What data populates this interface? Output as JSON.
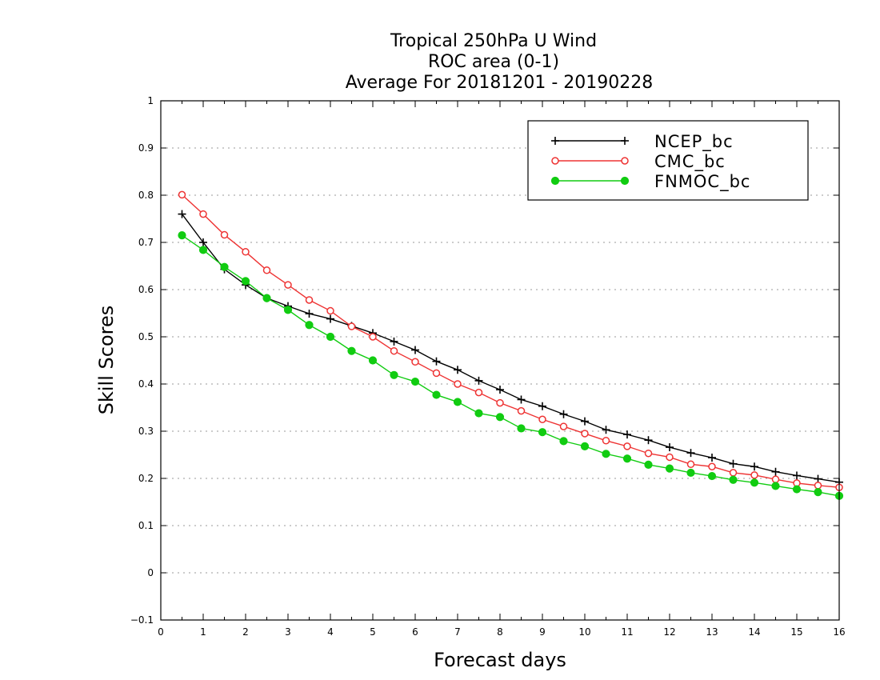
{
  "chart_data": {
    "type": "line",
    "title_lines": [
      "Tropical 250hPa U Wind",
      "ROC area (0-1)",
      "Average For 20181201 - 20190228"
    ],
    "xlabel": "Forecast days",
    "ylabel": "Skill Scores",
    "xlim": [
      0,
      16
    ],
    "ylim": [
      -0.1,
      1
    ],
    "x_ticks": [
      "0",
      "1",
      "2",
      "3",
      "4",
      "5",
      "6",
      "7",
      "8",
      "9",
      "10",
      "11",
      "12",
      "13",
      "14",
      "15",
      "16"
    ],
    "y_ticks": [
      "−0.1",
      "0",
      "0.1",
      "0.2",
      "0.3",
      "0.4",
      "0.5",
      "0.6",
      "0.7",
      "0.8",
      "0.9",
      "1"
    ],
    "grid": "horizontal dotted",
    "legend_position": "top-right",
    "x": [
      0.5,
      1,
      1.5,
      2,
      2.5,
      3,
      3.5,
      4,
      4.5,
      5,
      5.5,
      6,
      6.5,
      7,
      7.5,
      8,
      8.5,
      9,
      9.5,
      10,
      10.5,
      11,
      11.5,
      12,
      12.5,
      13,
      13.5,
      14,
      14.5,
      15,
      15.5,
      16
    ],
    "series": [
      {
        "name": "NCEP_bc",
        "color": "#000000",
        "marker": "plus",
        "values": [
          0.76,
          0.7,
          0.643,
          0.61,
          0.582,
          0.565,
          0.549,
          0.538,
          0.523,
          0.508,
          0.49,
          0.472,
          0.448,
          0.43,
          0.407,
          0.388,
          0.367,
          0.353,
          0.336,
          0.321,
          0.303,
          0.293,
          0.281,
          0.266,
          0.254,
          0.244,
          0.231,
          0.225,
          0.214,
          0.206,
          0.199,
          0.192
        ]
      },
      {
        "name": "CMC_bc",
        "color": "#ee3333",
        "marker": "open-circle",
        "values": [
          0.801,
          0.76,
          0.716,
          0.68,
          0.641,
          0.61,
          0.578,
          0.555,
          0.522,
          0.5,
          0.47,
          0.447,
          0.423,
          0.4,
          0.382,
          0.36,
          0.343,
          0.325,
          0.31,
          0.295,
          0.28,
          0.268,
          0.253,
          0.245,
          0.23,
          0.225,
          0.212,
          0.207,
          0.198,
          0.19,
          0.185,
          0.181
        ]
      },
      {
        "name": "FNMOC_bc",
        "color": "#11cc11",
        "marker": "filled-circle",
        "values": [
          0.715,
          0.684,
          0.648,
          0.618,
          0.582,
          0.557,
          0.525,
          0.5,
          0.47,
          0.45,
          0.419,
          0.405,
          0.377,
          0.362,
          0.338,
          0.33,
          0.306,
          0.298,
          0.279,
          0.268,
          0.252,
          0.242,
          0.229,
          0.221,
          0.212,
          0.205,
          0.197,
          0.191,
          0.184,
          0.177,
          0.171,
          0.163
        ]
      }
    ]
  }
}
